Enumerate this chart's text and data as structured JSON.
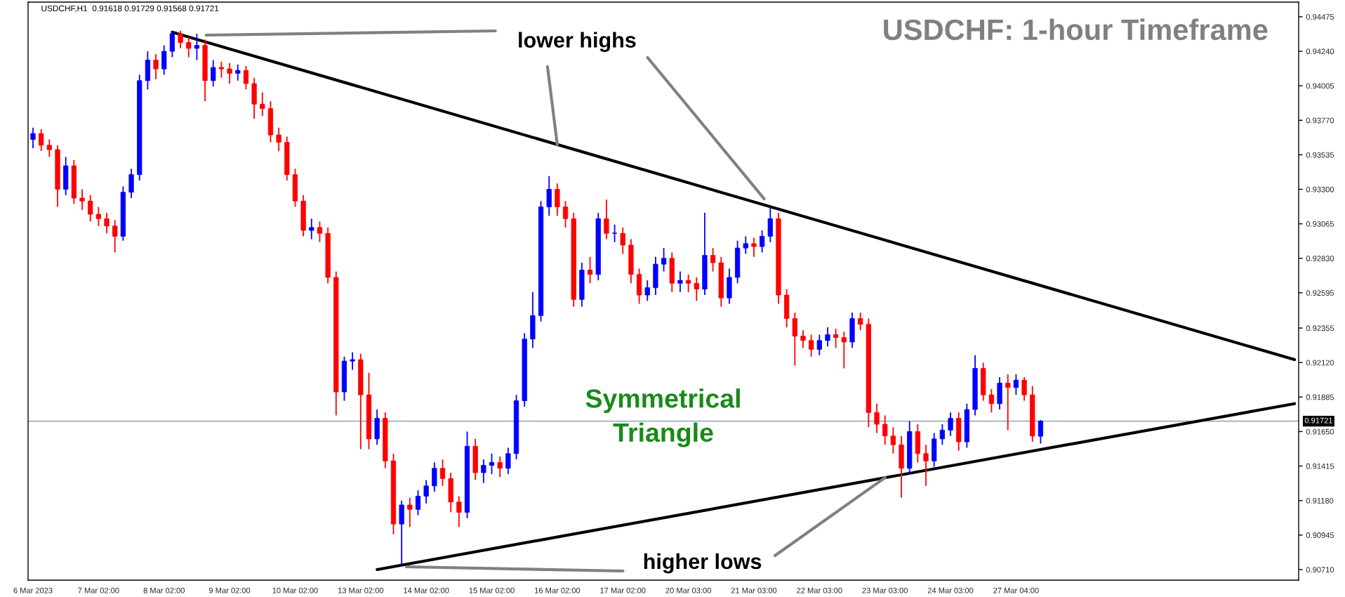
{
  "chart_data": {
    "type": "candlestick",
    "title": "USDCHF: 1-hour Timeframe",
    "categories": [
      "6 Mar 2023",
      null,
      null,
      null,
      null,
      null,
      null,
      null,
      "7 Mar 02:00",
      null,
      null,
      null,
      null,
      null,
      null,
      null,
      "8 Mar 02:00",
      null,
      null,
      null,
      null,
      null,
      null,
      null,
      "9 Mar 02:00",
      null,
      null,
      null,
      null,
      null,
      null,
      null,
      "10 Mar 02:00",
      null,
      null,
      null,
      null,
      null,
      null,
      null,
      "13 Mar 02:00",
      null,
      null,
      null,
      null,
      null,
      null,
      null,
      "14 Mar 02:00",
      null,
      null,
      null,
      null,
      null,
      null,
      null,
      "15 Mar 02:00",
      null,
      null,
      null,
      null,
      null,
      null,
      null,
      "16 Mar 02:00",
      null,
      null,
      null,
      null,
      null,
      null,
      null,
      "17 Mar 02:00",
      null,
      null,
      null,
      null,
      null,
      null,
      null,
      "20 Mar 03:00",
      null,
      null,
      null,
      null,
      null,
      null,
      null,
      "21 Mar 03:00",
      null,
      null,
      null,
      null,
      null,
      null,
      null,
      "22 Mar 03:00",
      null,
      null,
      null,
      null,
      null,
      null,
      null,
      "23 Mar 03:00",
      null,
      null,
      null,
      null,
      null,
      null,
      null,
      "24 Mar 03:00",
      null,
      null,
      null,
      null,
      null,
      null,
      null,
      "27 Mar 04:00",
      null,
      null,
      null,
      null,
      null,
      null,
      null,
      null,
      null,
      null,
      null,
      null,
      null,
      null,
      null,
      null,
      null,
      null,
      null,
      null,
      null,
      null,
      null,
      null,
      null,
      null,
      null,
      null,
      null,
      null,
      null,
      null,
      null,
      null
    ],
    "ohlc": [
      [
        0.9364,
        0.9372,
        0.9358,
        0.9368
      ],
      [
        0.9368,
        0.9371,
        0.9356,
        0.936
      ],
      [
        0.936,
        0.9364,
        0.9352,
        0.9357
      ],
      [
        0.9357,
        0.936,
        0.9318,
        0.933
      ],
      [
        0.933,
        0.9352,
        0.9326,
        0.9346
      ],
      [
        0.9346,
        0.935,
        0.932,
        0.9324
      ],
      [
        0.9324,
        0.933,
        0.9316,
        0.9322
      ],
      [
        0.9322,
        0.9326,
        0.9308,
        0.9313
      ],
      [
        0.9313,
        0.9318,
        0.9305,
        0.931
      ],
      [
        0.931,
        0.9314,
        0.93,
        0.9305
      ],
      [
        0.9305,
        0.9309,
        0.9287,
        0.9298
      ],
      [
        0.9298,
        0.9332,
        0.9295,
        0.9328
      ],
      [
        0.9328,
        0.9344,
        0.9324,
        0.934
      ],
      [
        0.934,
        0.9408,
        0.9336,
        0.9404
      ],
      [
        0.9404,
        0.9424,
        0.9398,
        0.9418
      ],
      [
        0.9418,
        0.9422,
        0.9405,
        0.9412
      ],
      [
        0.9412,
        0.9428,
        0.9408,
        0.9424
      ],
      [
        0.9424,
        0.9438,
        0.942,
        0.9436
      ],
      [
        0.9436,
        0.9438,
        0.9426,
        0.943
      ],
      [
        0.943,
        0.9434,
        0.942,
        0.9426
      ],
      [
        0.9426,
        0.9436,
        0.9418,
        0.9428
      ],
      [
        0.9428,
        0.9432,
        0.939,
        0.9404
      ],
      [
        0.9404,
        0.9418,
        0.94,
        0.9413
      ],
      [
        0.9413,
        0.9417,
        0.9406,
        0.9412
      ],
      [
        0.9412,
        0.9416,
        0.9402,
        0.9409
      ],
      [
        0.9409,
        0.9415,
        0.9404,
        0.9411
      ],
      [
        0.9411,
        0.9414,
        0.9398,
        0.9402
      ],
      [
        0.9402,
        0.9406,
        0.9378,
        0.9388
      ],
      [
        0.9388,
        0.9396,
        0.938,
        0.9385
      ],
      [
        0.9385,
        0.939,
        0.9362,
        0.9367
      ],
      [
        0.9367,
        0.9372,
        0.9356,
        0.9362
      ],
      [
        0.9362,
        0.9366,
        0.9336,
        0.934
      ],
      [
        0.934,
        0.9344,
        0.9318,
        0.9322
      ],
      [
        0.9322,
        0.9326,
        0.9298,
        0.9302
      ],
      [
        0.9302,
        0.931,
        0.9296,
        0.9304
      ],
      [
        0.9304,
        0.9308,
        0.9294,
        0.93
      ],
      [
        0.93,
        0.9304,
        0.9266,
        0.927
      ],
      [
        0.927,
        0.9274,
        0.9176,
        0.9192
      ],
      [
        0.9192,
        0.9216,
        0.9186,
        0.9213
      ],
      [
        0.9213,
        0.9219,
        0.9207,
        0.9214
      ],
      [
        0.9214,
        0.9218,
        0.9153,
        0.919
      ],
      [
        0.919,
        0.9205,
        0.9153,
        0.916
      ],
      [
        0.916,
        0.918,
        0.9156,
        0.9174
      ],
      [
        0.9174,
        0.9178,
        0.914,
        0.9145
      ],
      [
        0.9145,
        0.915,
        0.9095,
        0.9102
      ],
      [
        0.9102,
        0.9118,
        0.90744,
        0.9115
      ],
      [
        0.9115,
        0.912,
        0.91,
        0.9112
      ],
      [
        0.9112,
        0.9125,
        0.9108,
        0.9121
      ],
      [
        0.9121,
        0.9132,
        0.9116,
        0.9128
      ],
      [
        0.9128,
        0.9144,
        0.9124,
        0.914
      ],
      [
        0.914,
        0.9146,
        0.9128,
        0.9133
      ],
      [
        0.9133,
        0.9137,
        0.911,
        0.9117
      ],
      [
        0.9117,
        0.9121,
        0.91,
        0.911
      ],
      [
        0.911,
        0.9165,
        0.9106,
        0.9155
      ],
      [
        0.9155,
        0.916,
        0.9132,
        0.9137
      ],
      [
        0.9137,
        0.9146,
        0.913,
        0.9142
      ],
      [
        0.9142,
        0.915,
        0.9136,
        0.9144
      ],
      [
        0.9144,
        0.9148,
        0.9134,
        0.914
      ],
      [
        0.914,
        0.9154,
        0.9136,
        0.915
      ],
      [
        0.915,
        0.919,
        0.9146,
        0.9186
      ],
      [
        0.9186,
        0.9232,
        0.9182,
        0.9228
      ],
      [
        0.9228,
        0.926,
        0.9222,
        0.9244
      ],
      [
        0.9244,
        0.9322,
        0.924,
        0.9318
      ],
      [
        0.9318,
        0.9339,
        0.9312,
        0.933
      ],
      [
        0.933,
        0.9334,
        0.9312,
        0.9318
      ],
      [
        0.9318,
        0.9322,
        0.9304,
        0.931
      ],
      [
        0.931,
        0.9314,
        0.925,
        0.9255
      ],
      [
        0.9255,
        0.928,
        0.925,
        0.9275
      ],
      [
        0.9275,
        0.9284,
        0.9266,
        0.9272
      ],
      [
        0.9272,
        0.9314,
        0.9268,
        0.931
      ],
      [
        0.931,
        0.9323,
        0.9296,
        0.93
      ],
      [
        0.93,
        0.9306,
        0.9294,
        0.93
      ],
      [
        0.93,
        0.9304,
        0.9286,
        0.9292
      ],
      [
        0.9292,
        0.9296,
        0.9266,
        0.9272
      ],
      [
        0.9272,
        0.9276,
        0.9252,
        0.9258
      ],
      [
        0.9258,
        0.9268,
        0.9254,
        0.9263
      ],
      [
        0.9263,
        0.9284,
        0.9258,
        0.9279
      ],
      [
        0.9279,
        0.929,
        0.9274,
        0.9283
      ],
      [
        0.9283,
        0.9287,
        0.926,
        0.9266
      ],
      [
        0.9266,
        0.9274,
        0.926,
        0.9268
      ],
      [
        0.9268,
        0.9272,
        0.926,
        0.9266
      ],
      [
        0.9266,
        0.927,
        0.9254,
        0.9262
      ],
      [
        0.9262,
        0.9314,
        0.9258,
        0.9285
      ],
      [
        0.9285,
        0.929,
        0.9274,
        0.928
      ],
      [
        0.928,
        0.9284,
        0.925,
        0.9256
      ],
      [
        0.9256,
        0.9276,
        0.9252,
        0.927
      ],
      [
        0.927,
        0.9295,
        0.9266,
        0.929
      ],
      [
        0.929,
        0.9298,
        0.9286,
        0.9293
      ],
      [
        0.9293,
        0.9297,
        0.9284,
        0.9291
      ],
      [
        0.9291,
        0.9302,
        0.9287,
        0.9298
      ],
      [
        0.9298,
        0.9318,
        0.9294,
        0.931
      ],
      [
        0.931,
        0.9314,
        0.9252,
        0.9258
      ],
      [
        0.9258,
        0.9262,
        0.9236,
        0.9242
      ],
      [
        0.9242,
        0.9246,
        0.921,
        0.923
      ],
      [
        0.923,
        0.9234,
        0.9222,
        0.9227
      ],
      [
        0.9227,
        0.9231,
        0.9216,
        0.9221
      ],
      [
        0.9221,
        0.9231,
        0.9217,
        0.9227
      ],
      [
        0.9227,
        0.9236,
        0.9223,
        0.9231
      ],
      [
        0.9231,
        0.9235,
        0.9222,
        0.9229
      ],
      [
        0.9229,
        0.9233,
        0.9208,
        0.9226
      ],
      [
        0.9226,
        0.9246,
        0.9222,
        0.9242
      ],
      [
        0.9242,
        0.9246,
        0.9234,
        0.9238
      ],
      [
        0.9238,
        0.9242,
        0.9168,
        0.9178
      ],
      [
        0.9178,
        0.9184,
        0.9164,
        0.917
      ],
      [
        0.917,
        0.9176,
        0.9156,
        0.9162
      ],
      [
        0.9162,
        0.9168,
        0.915,
        0.9156
      ],
      [
        0.9156,
        0.9162,
        0.912,
        0.914
      ],
      [
        0.914,
        0.9172,
        0.9136,
        0.9165
      ],
      [
        0.9165,
        0.917,
        0.9144,
        0.915
      ],
      [
        0.915,
        0.9156,
        0.9128,
        0.9145
      ],
      [
        0.9145,
        0.9164,
        0.9141,
        0.916
      ],
      [
        0.916,
        0.917,
        0.9156,
        0.9166
      ],
      [
        0.9166,
        0.9178,
        0.9162,
        0.9174
      ],
      [
        0.9174,
        0.9178,
        0.9152,
        0.9158
      ],
      [
        0.9158,
        0.9184,
        0.9154,
        0.918
      ],
      [
        0.918,
        0.9217,
        0.9176,
        0.9208
      ],
      [
        0.9208,
        0.9212,
        0.9186,
        0.919
      ],
      [
        0.919,
        0.9194,
        0.9178,
        0.9184
      ],
      [
        0.9184,
        0.9202,
        0.918,
        0.9198
      ],
      [
        0.9198,
        0.9204,
        0.9166,
        0.9195
      ],
      [
        0.9195,
        0.9204,
        0.919,
        0.92
      ],
      [
        0.92,
        0.9202,
        0.9186,
        0.919
      ],
      [
        0.919,
        0.9196,
        0.9158,
        0.9162
      ],
      [
        0.91618,
        0.91729,
        0.91568,
        0.91721
      ],
      null,
      null,
      null,
      null,
      null,
      null,
      null,
      null,
      null,
      null,
      null,
      null,
      null,
      null,
      null,
      null,
      null,
      null,
      null,
      null,
      null,
      null,
      null,
      null,
      null,
      null,
      null,
      null,
      null,
      null,
      null
    ],
    "colors": [
      "#0000ff",
      "#ff0000",
      "#ff0000",
      "#ff0000",
      "#0000ff",
      "#ff0000",
      "#ff0000",
      "#ff0000",
      "#ff0000",
      "#ff0000",
      "#ff0000",
      "#0000ff",
      "#0000ff",
      "#0000ff",
      "#0000ff",
      "#ff0000",
      "#0000ff",
      "#0000ff",
      "#ff0000",
      "#ff0000",
      "#0000ff",
      "#ff0000",
      "#0000ff",
      "#ff0000",
      "#ff0000",
      "#0000ff",
      "#ff0000",
      "#ff0000",
      "#ff0000",
      "#ff0000",
      "#ff0000",
      "#ff0000",
      "#ff0000",
      "#ff0000",
      "#0000ff",
      "#ff0000",
      "#ff0000",
      "#ff0000",
      "#0000ff",
      "#0000ff",
      "#ff0000",
      "#ff0000",
      "#0000ff",
      "#ff0000",
      "#ff0000",
      "#0000ff",
      "#ff0000",
      "#0000ff",
      "#0000ff",
      "#0000ff",
      "#ff0000",
      "#ff0000",
      "#ff0000",
      "#0000ff",
      "#ff0000",
      "#0000ff",
      "#0000ff",
      "#ff0000",
      "#0000ff",
      "#0000ff",
      "#0000ff",
      "#0000ff",
      "#0000ff",
      "#0000ff",
      "#ff0000",
      "#ff0000",
      "#ff0000",
      "#0000ff",
      "#ff0000",
      "#0000ff",
      "#ff0000",
      "#0000ff",
      "#ff0000",
      "#ff0000",
      "#ff0000",
      "#0000ff",
      "#0000ff",
      "#0000ff",
      "#ff0000",
      "#0000ff",
      "#ff0000",
      "#ff0000",
      "#0000ff",
      "#ff0000",
      "#ff0000",
      "#0000ff",
      "#0000ff",
      "#0000ff",
      "#ff0000",
      "#0000ff",
      "#0000ff",
      "#ff0000",
      "#ff0000",
      "#ff0000",
      "#ff0000",
      "#ff0000",
      "#0000ff",
      "#0000ff",
      "#ff0000",
      "#ff0000",
      "#0000ff",
      "#ff0000",
      "#ff0000",
      "#ff0000",
      "#ff0000",
      "#ff0000",
      "#ff0000",
      "#0000ff",
      "#ff0000",
      "#ff0000",
      "#0000ff",
      "#0000ff",
      "#0000ff",
      "#ff0000",
      "#0000ff",
      "#0000ff",
      "#ff0000",
      "#ff0000",
      "#0000ff",
      "#ff0000",
      "#0000ff",
      "#ff0000",
      "#ff0000",
      "#0000ff",
      null,
      null,
      null,
      null,
      null,
      null,
      null,
      null,
      null,
      null,
      null,
      null,
      null,
      null,
      null,
      null,
      null,
      null,
      null,
      null,
      null,
      null,
      null,
      null,
      null,
      null,
      null,
      null,
      null,
      null,
      null
    ],
    "series": [
      {
        "type": "line",
        "color": "#000000",
        "values": [
          null,
          null,
          null,
          null,
          null,
          null,
          null,
          null,
          null,
          null,
          null,
          null,
          null,
          null,
          null,
          null,
          null,
          0.9437,
          null,
          null,
          null,
          null,
          null,
          null,
          null,
          null,
          null,
          null,
          null,
          null,
          null,
          null,
          null,
          null,
          null,
          null,
          null,
          null,
          null,
          null,
          null,
          null,
          null,
          null,
          null,
          null,
          null,
          null,
          null,
          null,
          null,
          null,
          null,
          null,
          null,
          null,
          null,
          null,
          null,
          null,
          null,
          null,
          null,
          null,
          null,
          null,
          null,
          null,
          null,
          null,
          null,
          null,
          null,
          null,
          null,
          null,
          null,
          null,
          null,
          null,
          null,
          null,
          null,
          null,
          null,
          null,
          null,
          null,
          null,
          null,
          null,
          null,
          null,
          null,
          null,
          null,
          null,
          null,
          null,
          null,
          null,
          null,
          null,
          null,
          null,
          null,
          null,
          null,
          null,
          null,
          null,
          null,
          null,
          null,
          null,
          null,
          null,
          null,
          null,
          null,
          null,
          null,
          null,
          null,
          null,
          null,
          null,
          null,
          null,
          null,
          null,
          null,
          null,
          null,
          null,
          null,
          null,
          null,
          null,
          null,
          null,
          null,
          null,
          null,
          null,
          null,
          null,
          null,
          null,
          null,
          null,
          null,
          null,
          null,
          0.9214
        ]
      },
      {
        "type": "line",
        "color": "#000000",
        "values": [
          null,
          null,
          null,
          null,
          null,
          null,
          null,
          null,
          null,
          null,
          null,
          null,
          null,
          null,
          null,
          null,
          null,
          null,
          null,
          null,
          null,
          null,
          null,
          null,
          null,
          null,
          null,
          null,
          null,
          null,
          null,
          null,
          null,
          null,
          null,
          null,
          null,
          null,
          null,
          null,
          null,
          null,
          0.9071,
          null,
          null,
          null,
          null,
          null,
          null,
          null,
          null,
          null,
          null,
          null,
          null,
          null,
          null,
          null,
          null,
          null,
          null,
          null,
          null,
          null,
          null,
          null,
          null,
          null,
          null,
          null,
          null,
          null,
          null,
          null,
          null,
          null,
          null,
          null,
          null,
          null,
          null,
          null,
          null,
          null,
          null,
          null,
          null,
          null,
          null,
          null,
          null,
          null,
          null,
          null,
          null,
          null,
          null,
          null,
          null,
          null,
          null,
          null,
          null,
          null,
          null,
          null,
          null,
          null,
          null,
          null,
          null,
          null,
          null,
          null,
          null,
          null,
          null,
          null,
          null,
          null,
          null,
          null,
          null,
          null,
          null,
          null,
          null,
          null,
          null,
          null,
          null,
          null,
          null,
          null,
          null,
          null,
          null,
          null,
          null,
          null,
          null,
          null,
          null,
          null,
          null,
          null,
          null,
          null,
          null,
          null,
          null,
          null,
          null,
          null,
          0.9184
        ]
      }
    ],
    "ylim": [
      0.90638,
      0.94575
    ],
    "yticks": [
      {
        "value": 0.94475,
        "label": "0.94475"
      },
      {
        "value": 0.9424,
        "label": "0.94240"
      },
      {
        "value": 0.94005,
        "label": "0.94005"
      },
      {
        "value": 0.9377,
        "label": "0.93770"
      },
      {
        "value": 0.93535,
        "label": "0.93535"
      },
      {
        "value": 0.933,
        "label": "0.93300"
      },
      {
        "value": 0.93065,
        "label": "0.93065"
      },
      {
        "value": 0.9283,
        "label": "0.92830"
      },
      {
        "value": 0.92595,
        "label": "0.92595"
      },
      {
        "value": 0.92355,
        "label": "0.92355"
      },
      {
        "value": 0.9212,
        "label": "0.92120"
      },
      {
        "value": 0.91885,
        "label": "0.91885"
      },
      {
        "value": 0.9165,
        "label": "0.91650"
      },
      {
        "value": 0.91415,
        "label": "0.91415"
      },
      {
        "value": 0.9118,
        "label": "0.91180"
      },
      {
        "value": 0.90945,
        "label": "0.90945"
      },
      {
        "value": 0.9071,
        "label": "0.90710"
      }
    ],
    "ref_lines": [
      {
        "axis": "y",
        "value": 0.91721,
        "label": "0.91721",
        "color": "#7f94a8"
      }
    ],
    "annotations": [
      "USDCHF,H1  0.91618 0.91729 0.91568 0.91721",
      {
        "text": "lower highs",
        "x": "16 Mar 02:00",
        "y": 0.93605
      },
      {
        "text": "higher lows",
        "x": "23 Mar 03:00",
        "y": 0.91336
      },
      "Symmetrical\nTriangle"
    ],
    "grid": false,
    "legend": false
  }
}
